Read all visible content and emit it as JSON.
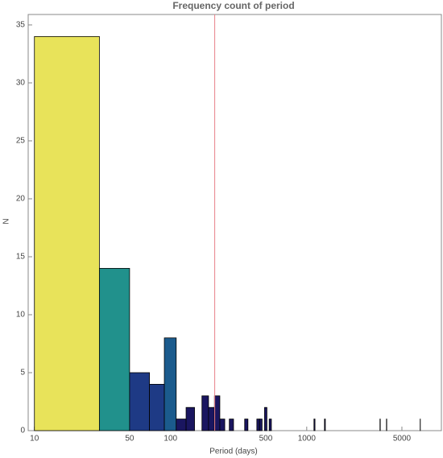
{
  "chart_data": {
    "type": "histogram",
    "title": "Frequency count of period",
    "xlabel": "Period (days)",
    "ylabel": "N",
    "bins": [
      10,
      30,
      50,
      70,
      90,
      110,
      130,
      150,
      170,
      190,
      210,
      230,
      250,
      270,
      290,
      350,
      370,
      430,
      450,
      470,
      490,
      510,
      530,
      550,
      1130,
      1150,
      1350,
      1370,
      3450,
      3470,
      3850,
      3870,
      6810,
      6830
    ],
    "counts": [
      34,
      14,
      5,
      4,
      8,
      1,
      2,
      0,
      3,
      2,
      3,
      1,
      0,
      1,
      0,
      1,
      0,
      1,
      1,
      0,
      2,
      0,
      1,
      0,
      1,
      0,
      1,
      0,
      1,
      0,
      1,
      0,
      1
    ],
    "colors": [
      "#e8e35a",
      "#21918c",
      "#1e3a85",
      "#1e3a85",
      "#1b5b8d",
      "#1a1660",
      "#1a1660",
      null,
      "#1a1660",
      "#1a1660",
      "#1a1660",
      "#1a1660",
      null,
      "#1a1660",
      null,
      "#1a1660",
      null,
      "#1a1660",
      "#1a1660",
      null,
      "#1a1660",
      null,
      "#1a1660",
      null,
      "#1a1660",
      null,
      "#1a1660",
      null,
      "#1a1660",
      null,
      "#1a1660",
      null,
      "#1a1660"
    ],
    "xscale": "log",
    "xlim": [
      9,
      9750
    ],
    "xticks": [
      10,
      50,
      100,
      500,
      1000,
      5000
    ],
    "ylim": [
      0,
      35.9
    ],
    "yticks": [
      0,
      5,
      10,
      15,
      20,
      25,
      30,
      35
    ],
    "vline": 211,
    "vline_color": "#e8808a"
  }
}
